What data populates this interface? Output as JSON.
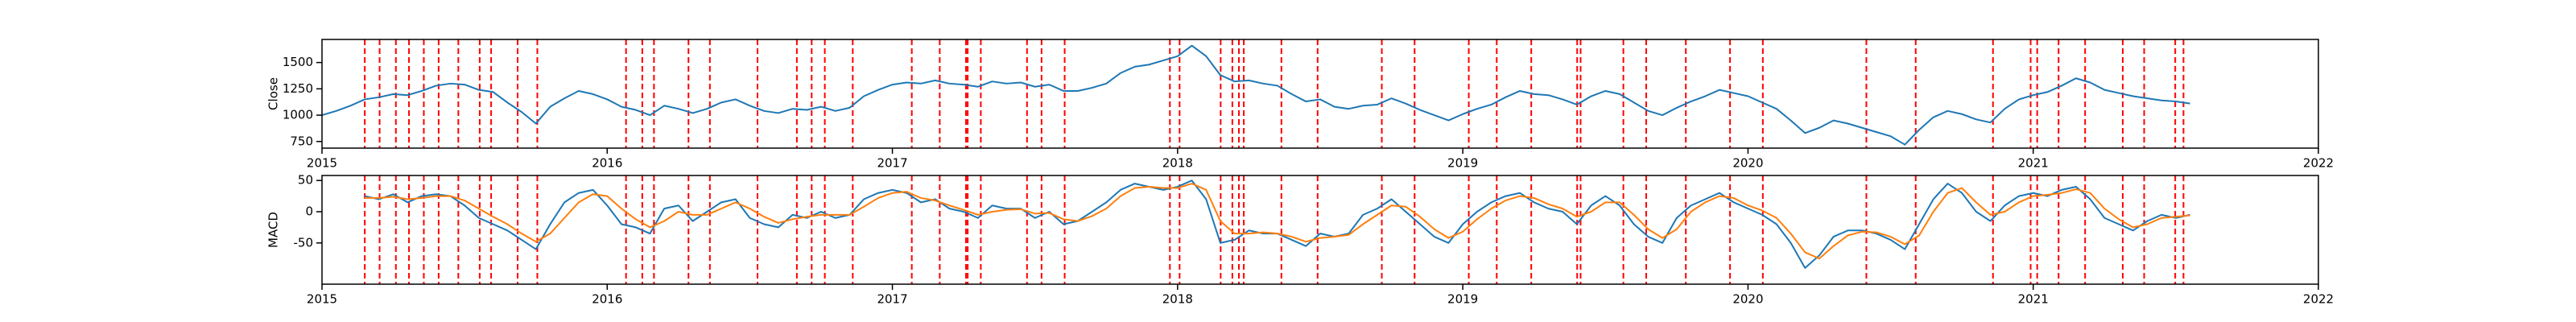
{
  "chart_data": [
    {
      "type": "line",
      "ylabel": "Close",
      "xlim": [
        2015,
        2022
      ],
      "xticks": [
        2015,
        2016,
        2017,
        2018,
        2019,
        2020,
        2021,
        2022
      ],
      "ylim": [
        687,
        1719
      ],
      "yticks": [
        750,
        1000,
        1250,
        1500
      ],
      "x": [
        2015.0,
        2015.05,
        2015.1,
        2015.15,
        2015.2,
        2015.25,
        2015.3,
        2015.35,
        2015.4,
        2015.45,
        2015.5,
        2015.55,
        2015.6,
        2015.65,
        2015.7,
        2015.75,
        2015.8,
        2015.85,
        2015.9,
        2015.95,
        2016.0,
        2016.05,
        2016.1,
        2016.15,
        2016.2,
        2016.25,
        2016.3,
        2016.35,
        2016.4,
        2016.45,
        2016.5,
        2016.55,
        2016.6,
        2016.65,
        2016.7,
        2016.75,
        2016.8,
        2016.85,
        2016.9,
        2016.95,
        2017.0,
        2017.05,
        2017.1,
        2017.15,
        2017.2,
        2017.25,
        2017.3,
        2017.35,
        2017.4,
        2017.45,
        2017.5,
        2017.55,
        2017.6,
        2017.65,
        2017.7,
        2017.75,
        2017.8,
        2017.85,
        2017.9,
        2017.95,
        2018.0,
        2018.05,
        2018.1,
        2018.15,
        2018.2,
        2018.25,
        2018.3,
        2018.35,
        2018.4,
        2018.45,
        2018.5,
        2018.55,
        2018.6,
        2018.65,
        2018.7,
        2018.75,
        2018.8,
        2018.85,
        2018.9,
        2018.95,
        2019.0,
        2019.05,
        2019.1,
        2019.15,
        2019.2,
        2019.25,
        2019.3,
        2019.35,
        2019.4,
        2019.45,
        2019.5,
        2019.55,
        2019.6,
        2019.65,
        2019.7,
        2019.75,
        2019.8,
        2019.85,
        2019.9,
        2019.95,
        2020.0,
        2020.05,
        2020.1,
        2020.15,
        2020.2,
        2020.25,
        2020.3,
        2020.35,
        2020.4,
        2020.45,
        2020.5,
        2020.55,
        2020.6,
        2020.65,
        2020.7,
        2020.75,
        2020.8,
        2020.85,
        2020.9,
        2020.95,
        2021.0,
        2021.05,
        2021.1,
        2021.15,
        2021.2,
        2021.25,
        2021.3,
        2021.35,
        2021.4,
        2021.45,
        2021.5,
        2021.55
      ],
      "series": [
        {
          "color": "#1f77b4",
          "values": [
            1000,
            1040,
            1090,
            1150,
            1170,
            1200,
            1190,
            1230,
            1280,
            1300,
            1290,
            1240,
            1220,
            1120,
            1030,
            920,
            1080,
            1160,
            1230,
            1200,
            1150,
            1080,
            1050,
            1000,
            1090,
            1060,
            1020,
            1060,
            1120,
            1150,
            1090,
            1040,
            1020,
            1060,
            1050,
            1080,
            1040,
            1070,
            1180,
            1240,
            1290,
            1310,
            1300,
            1330,
            1300,
            1290,
            1270,
            1320,
            1300,
            1310,
            1270,
            1290,
            1230,
            1230,
            1260,
            1300,
            1400,
            1460,
            1480,
            1520,
            1560,
            1660,
            1560,
            1380,
            1320,
            1330,
            1300,
            1280,
            1200,
            1130,
            1150,
            1080,
            1060,
            1090,
            1100,
            1160,
            1110,
            1050,
            1000,
            950,
            1010,
            1060,
            1100,
            1170,
            1230,
            1200,
            1190,
            1150,
            1100,
            1180,
            1230,
            1200,
            1120,
            1040,
            1000,
            1070,
            1130,
            1180,
            1240,
            1210,
            1180,
            1120,
            1060,
            950,
            830,
            880,
            950,
            920,
            880,
            840,
            800,
            720,
            860,
            980,
            1040,
            1010,
            960,
            930,
            1060,
            1150,
            1190,
            1220,
            1280,
            1350,
            1310,
            1240,
            1210,
            1180,
            1160,
            1140,
            1130,
            1110
          ]
        }
      ],
      "vline_color": "#ff0000",
      "vlines": [
        2015.15,
        2015.202,
        2015.259,
        2015.305,
        2015.357,
        2015.409,
        2015.478,
        2015.553,
        2015.593,
        2015.686,
        2015.755,
        2016.066,
        2016.123,
        2016.164,
        2016.285,
        2016.36,
        2016.527,
        2016.665,
        2016.717,
        2016.763,
        2016.861,
        2017.068,
        2017.166,
        2017.258,
        2017.264,
        2017.31,
        2017.472,
        2017.523,
        2017.604,
        2017.973,
        2018.007,
        2018.151,
        2018.192,
        2018.215,
        2018.232,
        2018.364,
        2018.491,
        2018.716,
        2018.831,
        2019.021,
        2019.119,
        2019.24,
        2019.401,
        2019.413,
        2019.563,
        2019.643,
        2019.782,
        2019.937,
        2020.052,
        2020.415,
        2020.588,
        2020.859,
        2020.991,
        2021.014,
        2021.089,
        2021.182,
        2021.314,
        2021.389,
        2021.498,
        2021.527
      ]
    },
    {
      "type": "line",
      "ylabel": "MACD",
      "xlim": [
        2015,
        2022
      ],
      "xticks": [
        2015,
        2016,
        2017,
        2018,
        2019,
        2020,
        2021,
        2022
      ],
      "ylim": [
        -116,
        58
      ],
      "yticks": [
        -50,
        0,
        50
      ],
      "x": [
        2015.0,
        2015.05,
        2015.1,
        2015.15,
        2015.2,
        2015.25,
        2015.3,
        2015.35,
        2015.4,
        2015.45,
        2015.5,
        2015.55,
        2015.6,
        2015.65,
        2015.7,
        2015.75,
        2015.8,
        2015.85,
        2015.9,
        2015.95,
        2016.0,
        2016.05,
        2016.1,
        2016.15,
        2016.2,
        2016.25,
        2016.3,
        2016.35,
        2016.4,
        2016.45,
        2016.5,
        2016.55,
        2016.6,
        2016.65,
        2016.7,
        2016.75,
        2016.8,
        2016.85,
        2016.9,
        2016.95,
        2017.0,
        2017.05,
        2017.1,
        2017.15,
        2017.2,
        2017.25,
        2017.3,
        2017.35,
        2017.4,
        2017.45,
        2017.5,
        2017.55,
        2017.6,
        2017.65,
        2017.7,
        2017.75,
        2017.8,
        2017.85,
        2017.9,
        2017.95,
        2018.0,
        2018.05,
        2018.1,
        2018.15,
        2018.2,
        2018.25,
        2018.3,
        2018.35,
        2018.4,
        2018.45,
        2018.5,
        2018.55,
        2018.6,
        2018.65,
        2018.7,
        2018.75,
        2018.8,
        2018.85,
        2018.9,
        2018.95,
        2019.0,
        2019.05,
        2019.1,
        2019.15,
        2019.2,
        2019.25,
        2019.3,
        2019.35,
        2019.4,
        2019.45,
        2019.5,
        2019.55,
        2019.6,
        2019.65,
        2019.7,
        2019.75,
        2019.8,
        2019.85,
        2019.9,
        2019.95,
        2020.0,
        2020.05,
        2020.1,
        2020.15,
        2020.2,
        2020.25,
        2020.3,
        2020.35,
        2020.4,
        2020.45,
        2020.5,
        2020.55,
        2020.6,
        2020.65,
        2020.7,
        2020.75,
        2020.8,
        2020.85,
        2020.9,
        2020.95,
        2021.0,
        2021.05,
        2021.1,
        2021.15,
        2021.2,
        2021.25,
        2021.3,
        2021.35,
        2021.4,
        2021.45,
        2021.5,
        2021.55
      ],
      "series": [
        {
          "color": "#1f77b4",
          "values": [
            null,
            null,
            null,
            25,
            20,
            28,
            15,
            25,
            28,
            25,
            10,
            -10,
            -20,
            -30,
            -45,
            -60,
            -20,
            15,
            30,
            35,
            10,
            -20,
            -25,
            -35,
            5,
            10,
            -15,
            0,
            15,
            20,
            -10,
            -20,
            -25,
            -5,
            -10,
            0,
            -10,
            -5,
            20,
            30,
            35,
            30,
            15,
            20,
            5,
            0,
            -10,
            10,
            5,
            5,
            -10,
            0,
            -20,
            -15,
            0,
            15,
            35,
            45,
            40,
            35,
            40,
            50,
            20,
            -50,
            -45,
            -30,
            -35,
            -35,
            -45,
            -55,
            -35,
            -40,
            -35,
            -5,
            5,
            20,
            0,
            -20,
            -40,
            -50,
            -20,
            0,
            15,
            25,
            30,
            15,
            5,
            0,
            -20,
            10,
            25,
            10,
            -20,
            -40,
            -50,
            -10,
            10,
            20,
            30,
            15,
            5,
            -5,
            -20,
            -50,
            -90,
            -70,
            -40,
            -30,
            -30,
            -35,
            -45,
            -60,
            -20,
            20,
            45,
            30,
            0,
            -15,
            10,
            25,
            30,
            25,
            35,
            40,
            20,
            -10,
            -20,
            -30,
            -15,
            -5,
            -10,
            -5
          ]
        },
        {
          "color": "#ff7f0e",
          "values": [
            null,
            null,
            null,
            22,
            22,
            24,
            20,
            22,
            25,
            25,
            18,
            5,
            -8,
            -20,
            -35,
            -48,
            -35,
            -10,
            15,
            28,
            25,
            5,
            -12,
            -25,
            -15,
            0,
            -5,
            -5,
            5,
            15,
            5,
            -8,
            -18,
            -12,
            -8,
            -5,
            -5,
            -5,
            8,
            22,
            30,
            32,
            22,
            18,
            10,
            3,
            -5,
            0,
            3,
            4,
            -3,
            -2,
            -12,
            -15,
            -7,
            5,
            25,
            38,
            40,
            38,
            38,
            45,
            35,
            -15,
            -35,
            -35,
            -33,
            -35,
            -40,
            -48,
            -42,
            -40,
            -37,
            -20,
            -5,
            10,
            8,
            -8,
            -28,
            -42,
            -32,
            -12,
            5,
            18,
            25,
            22,
            12,
            5,
            -8,
            0,
            15,
            15,
            -5,
            -28,
            -42,
            -28,
            0,
            15,
            25,
            22,
            10,
            2,
            -10,
            -35,
            -65,
            -75,
            -55,
            -38,
            -32,
            -33,
            -40,
            -52,
            -38,
            0,
            30,
            38,
            15,
            -5,
            0,
            15,
            25,
            27,
            30,
            36,
            30,
            5,
            -12,
            -25,
            -20,
            -10,
            -8,
            -6
          ]
        }
      ],
      "vline_color": "#ff0000",
      "vlines": [
        2015.15,
        2015.202,
        2015.259,
        2015.305,
        2015.357,
        2015.409,
        2015.478,
        2015.553,
        2015.593,
        2015.686,
        2015.755,
        2016.066,
        2016.123,
        2016.164,
        2016.285,
        2016.36,
        2016.527,
        2016.665,
        2016.717,
        2016.763,
        2016.861,
        2017.068,
        2017.166,
        2017.258,
        2017.264,
        2017.31,
        2017.472,
        2017.523,
        2017.604,
        2017.973,
        2018.007,
        2018.151,
        2018.192,
        2018.215,
        2018.232,
        2018.364,
        2018.491,
        2018.716,
        2018.831,
        2019.021,
        2019.119,
        2019.24,
        2019.401,
        2019.413,
        2019.563,
        2019.643,
        2019.782,
        2019.937,
        2020.052,
        2020.415,
        2020.588,
        2020.859,
        2020.991,
        2021.014,
        2021.089,
        2021.182,
        2021.314,
        2021.389,
        2021.498,
        2021.527
      ]
    }
  ]
}
